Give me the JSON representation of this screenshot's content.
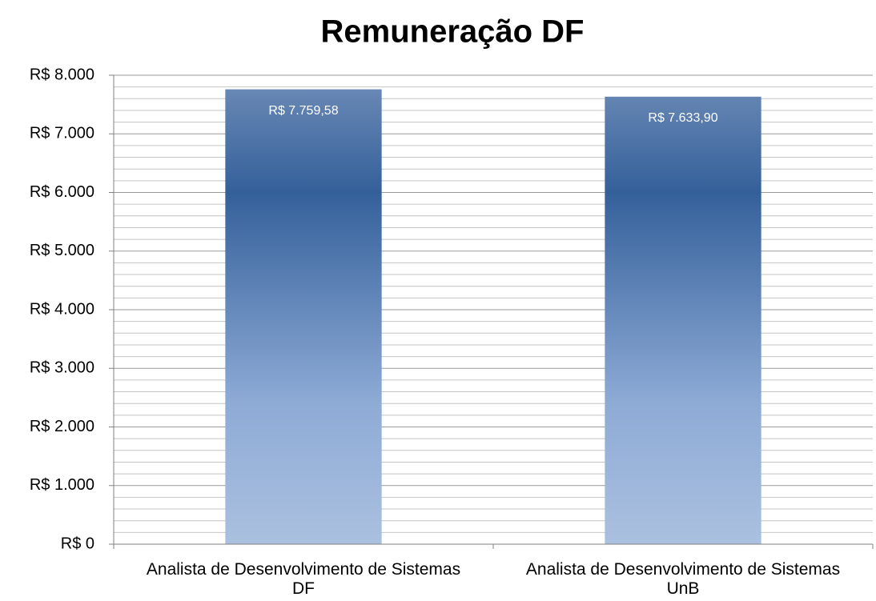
{
  "chart_data": {
    "type": "bar",
    "title": "Remuneração DF",
    "categories": [
      "Analista de Desenvolvimento de Sistemas DF",
      "Analista de Desenvolvimento de Sistemas UnB"
    ],
    "values": [
      7759.58,
      7633.9
    ],
    "value_labels": [
      "R$ 7.759,58",
      "R$ 7.633,90"
    ],
    "color": "#34609a",
    "ylim": [
      0,
      8000
    ],
    "yticks": [
      {
        "value": 0,
        "label": "R$ 0"
      },
      {
        "value": 1000,
        "label": "R$ 1.000"
      },
      {
        "value": 2000,
        "label": "R$ 2.000"
      },
      {
        "value": 3000,
        "label": "R$ 3.000"
      },
      {
        "value": 4000,
        "label": "R$ 4.000"
      },
      {
        "value": 5000,
        "label": "R$ 5.000"
      },
      {
        "value": 6000,
        "label": "R$ 6.000"
      },
      {
        "value": 7000,
        "label": "R$ 7.000"
      },
      {
        "value": 8000,
        "label": "R$ 8.000"
      }
    ],
    "minor_yticks": [
      200,
      400,
      600,
      800,
      1200,
      1400,
      1600,
      1800,
      2200,
      2400,
      2600,
      2800,
      3200,
      3400,
      3600,
      3800,
      4200,
      4400,
      4600,
      4800,
      5200,
      5400,
      5600,
      5800,
      6200,
      6400,
      6600,
      6800,
      7200,
      7400,
      7600,
      7800
    ],
    "grid": true
  }
}
